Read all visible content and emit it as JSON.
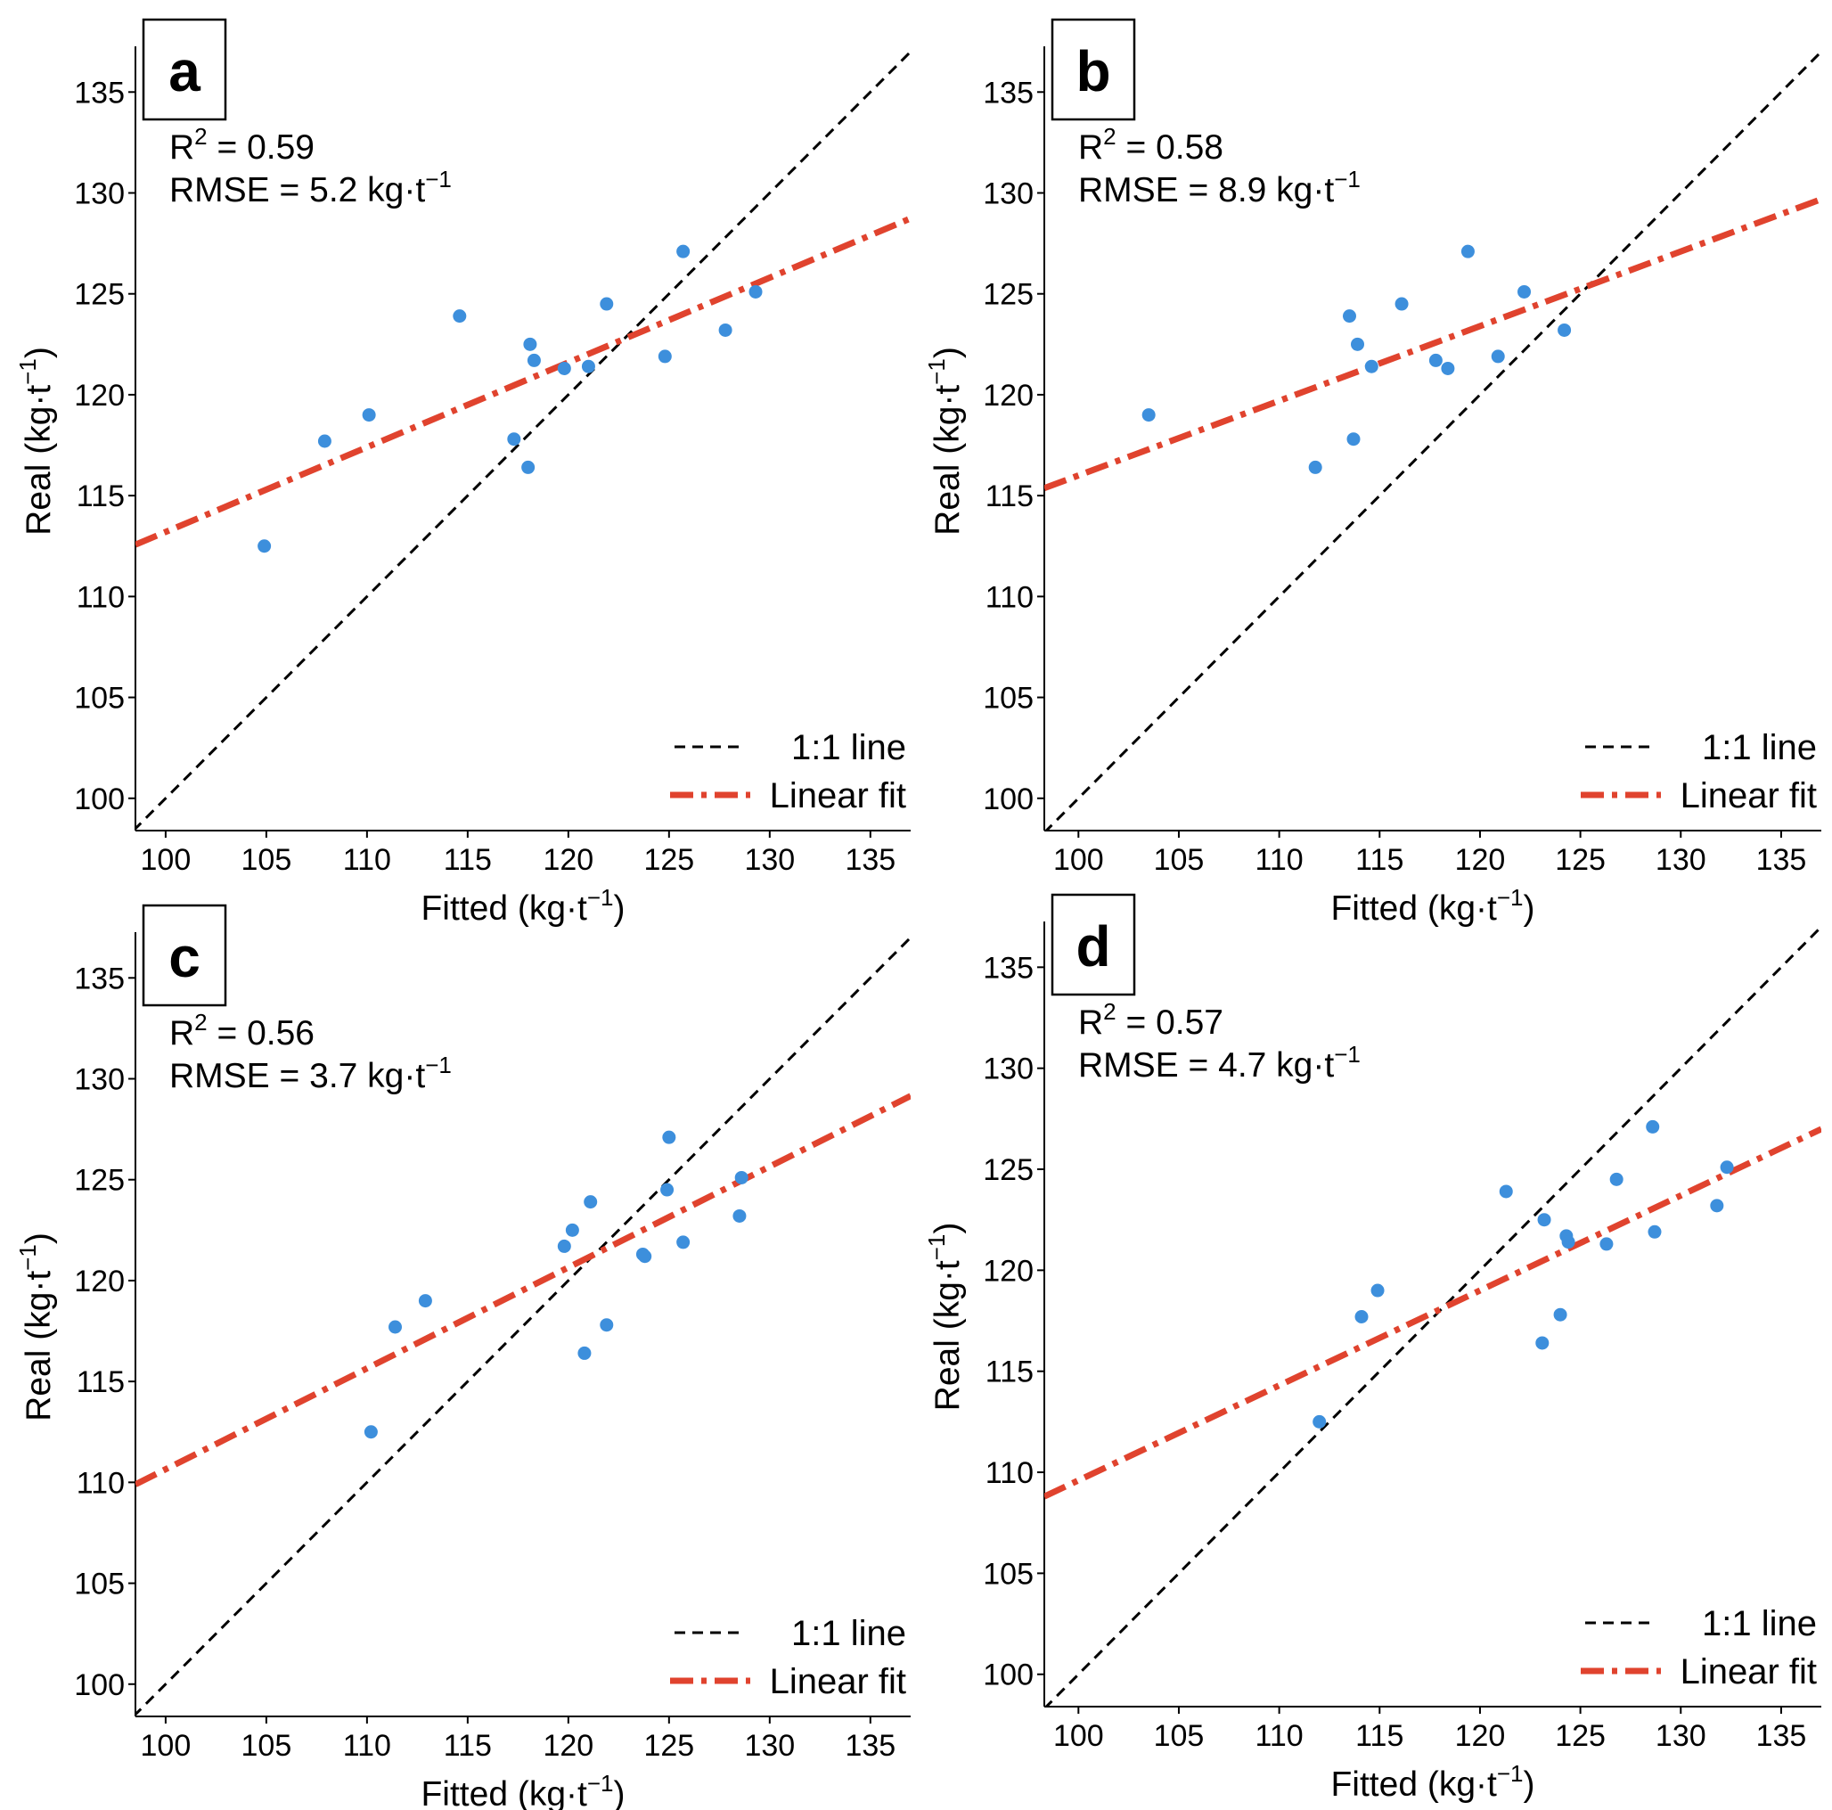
{
  "figure": {
    "colors": {
      "points": "#3d8fdc",
      "fit_line": "#e0432e",
      "identity_line": "#000000",
      "axis": "#000000",
      "background": "#ffffff"
    }
  },
  "chart_data": [
    {
      "type": "scatter",
      "panel_label": "a",
      "xlabel": "Fitted (kg·t",
      "ylabel": "Real (kg·t",
      "unit_exponent": "−1",
      "label_close": ")",
      "xlim": [
        98.5,
        137
      ],
      "ylim": [
        98.4,
        137
      ],
      "xticks": [
        100,
        105,
        110,
        115,
        120,
        125,
        130,
        135
      ],
      "yticks": [
        100,
        105,
        110,
        115,
        120,
        125,
        130,
        135
      ],
      "stats": {
        "r2_prefix": "R",
        "r2_sup": "2",
        "r2_value": " = 0.59",
        "rmse_text": "RMSE = 5.2 kg·t",
        "rmse_sup": "−1"
      },
      "legend": {
        "identity_label": "1:1 line",
        "fit_label": "Linear fit",
        "position": "bottom-right"
      },
      "fit": {
        "slope": 0.42,
        "intercept": 71.2
      },
      "points": [
        {
          "x": 104.9,
          "y": 112.5
        },
        {
          "x": 107.9,
          "y": 117.7
        },
        {
          "x": 110.1,
          "y": 119.0
        },
        {
          "x": 114.6,
          "y": 123.9
        },
        {
          "x": 117.3,
          "y": 117.8
        },
        {
          "x": 118.0,
          "y": 116.4
        },
        {
          "x": 118.1,
          "y": 122.5
        },
        {
          "x": 118.3,
          "y": 121.7
        },
        {
          "x": 119.8,
          "y": 121.3
        },
        {
          "x": 121.0,
          "y": 121.4
        },
        {
          "x": 121.9,
          "y": 124.5
        },
        {
          "x": 124.8,
          "y": 121.9
        },
        {
          "x": 125.7,
          "y": 127.1
        },
        {
          "x": 127.8,
          "y": 123.2
        },
        {
          "x": 129.3,
          "y": 125.1
        }
      ]
    },
    {
      "type": "scatter",
      "panel_label": "b",
      "xlabel": "Fitted (kg·t",
      "ylabel": "Real (kg·t",
      "unit_exponent": "−1",
      "label_close": ")",
      "xlim": [
        98.3,
        137
      ],
      "ylim": [
        98.4,
        137
      ],
      "xticks": [
        100,
        105,
        110,
        115,
        120,
        125,
        130,
        135
      ],
      "yticks": [
        100,
        105,
        110,
        115,
        120,
        125,
        130,
        135
      ],
      "stats": {
        "r2_prefix": "R",
        "r2_sup": "2",
        "r2_value": " = 0.58",
        "rmse_text": "RMSE = 8.9 kg·t",
        "rmse_sup": "−1"
      },
      "legend": {
        "identity_label": "1:1 line",
        "fit_label": "Linear fit",
        "position": "bottom-right"
      },
      "fit": {
        "slope": 0.37,
        "intercept": 79.0
      },
      "points": [
        {
          "x": 103.5,
          "y": 119.0
        },
        {
          "x": 111.8,
          "y": 116.4
        },
        {
          "x": 113.5,
          "y": 123.9
        },
        {
          "x": 113.7,
          "y": 117.8
        },
        {
          "x": 113.9,
          "y": 122.5
        },
        {
          "x": 114.6,
          "y": 121.4
        },
        {
          "x": 116.1,
          "y": 124.5
        },
        {
          "x": 117.8,
          "y": 121.7
        },
        {
          "x": 118.4,
          "y": 121.3
        },
        {
          "x": 119.4,
          "y": 127.1
        },
        {
          "x": 120.9,
          "y": 121.9
        },
        {
          "x": 122.2,
          "y": 125.1
        },
        {
          "x": 124.2,
          "y": 123.2
        }
      ]
    },
    {
      "type": "scatter",
      "panel_label": "c",
      "xlabel": "Fitted (kg·t",
      "ylabel": "Real (kg·t",
      "unit_exponent": "−1",
      "label_close": ")",
      "xlim": [
        98.5,
        137
      ],
      "ylim": [
        98.4,
        137
      ],
      "xticks": [
        100,
        105,
        110,
        115,
        120,
        125,
        130,
        135
      ],
      "yticks": [
        100,
        105,
        110,
        115,
        120,
        125,
        130,
        135
      ],
      "stats": {
        "r2_prefix": "R",
        "r2_sup": "2",
        "r2_value": " = 0.56",
        "rmse_text": "RMSE = 3.7 kg·t",
        "rmse_sup": "−1"
      },
      "legend": {
        "identity_label": "1:1 line",
        "fit_label": "Linear fit",
        "position": "bottom-right"
      },
      "fit": {
        "slope": 0.5,
        "intercept": 60.65
      },
      "points": [
        {
          "x": 110.2,
          "y": 112.5
        },
        {
          "x": 111.4,
          "y": 117.7
        },
        {
          "x": 112.9,
          "y": 119.0
        },
        {
          "x": 119.8,
          "y": 121.7
        },
        {
          "x": 120.2,
          "y": 122.5
        },
        {
          "x": 120.8,
          "y": 116.4
        },
        {
          "x": 121.1,
          "y": 123.9
        },
        {
          "x": 121.9,
          "y": 117.8
        },
        {
          "x": 123.7,
          "y": 121.3
        },
        {
          "x": 123.8,
          "y": 121.2
        },
        {
          "x": 124.9,
          "y": 124.5
        },
        {
          "x": 125.0,
          "y": 127.1
        },
        {
          "x": 125.7,
          "y": 121.9
        },
        {
          "x": 128.5,
          "y": 123.2
        },
        {
          "x": 128.6,
          "y": 125.1
        }
      ]
    },
    {
      "type": "scatter",
      "panel_label": "d",
      "xlabel": "Fitted (kg·t",
      "ylabel": "Real (kg·t",
      "unit_exponent": "−1",
      "label_close": ")",
      "xlim": [
        98.3,
        137
      ],
      "ylim": [
        98.4,
        137
      ],
      "xticks": [
        100,
        105,
        110,
        115,
        120,
        125,
        130,
        135
      ],
      "yticks": [
        100,
        105,
        110,
        115,
        120,
        125,
        130,
        135
      ],
      "stats": {
        "r2_prefix": "R",
        "r2_sup": "2",
        "r2_value": " = 0.57",
        "rmse_text": "RMSE = 4.7 kg·t",
        "rmse_sup": "−1"
      },
      "legend": {
        "identity_label": "1:1 line",
        "fit_label": "Linear fit",
        "position": "bottom-right"
      },
      "fit": {
        "slope": 0.47,
        "intercept": 62.6
      },
      "points": [
        {
          "x": 112.0,
          "y": 112.5
        },
        {
          "x": 114.1,
          "y": 117.7
        },
        {
          "x": 114.9,
          "y": 119.0
        },
        {
          "x": 121.3,
          "y": 123.9
        },
        {
          "x": 123.1,
          "y": 116.4
        },
        {
          "x": 123.2,
          "y": 122.5
        },
        {
          "x": 124.0,
          "y": 117.8
        },
        {
          "x": 124.3,
          "y": 121.7
        },
        {
          "x": 124.4,
          "y": 121.4
        },
        {
          "x": 126.3,
          "y": 121.3
        },
        {
          "x": 126.8,
          "y": 124.5
        },
        {
          "x": 128.6,
          "y": 127.1
        },
        {
          "x": 128.7,
          "y": 121.9
        },
        {
          "x": 131.8,
          "y": 123.2
        },
        {
          "x": 132.3,
          "y": 125.1
        }
      ]
    }
  ]
}
